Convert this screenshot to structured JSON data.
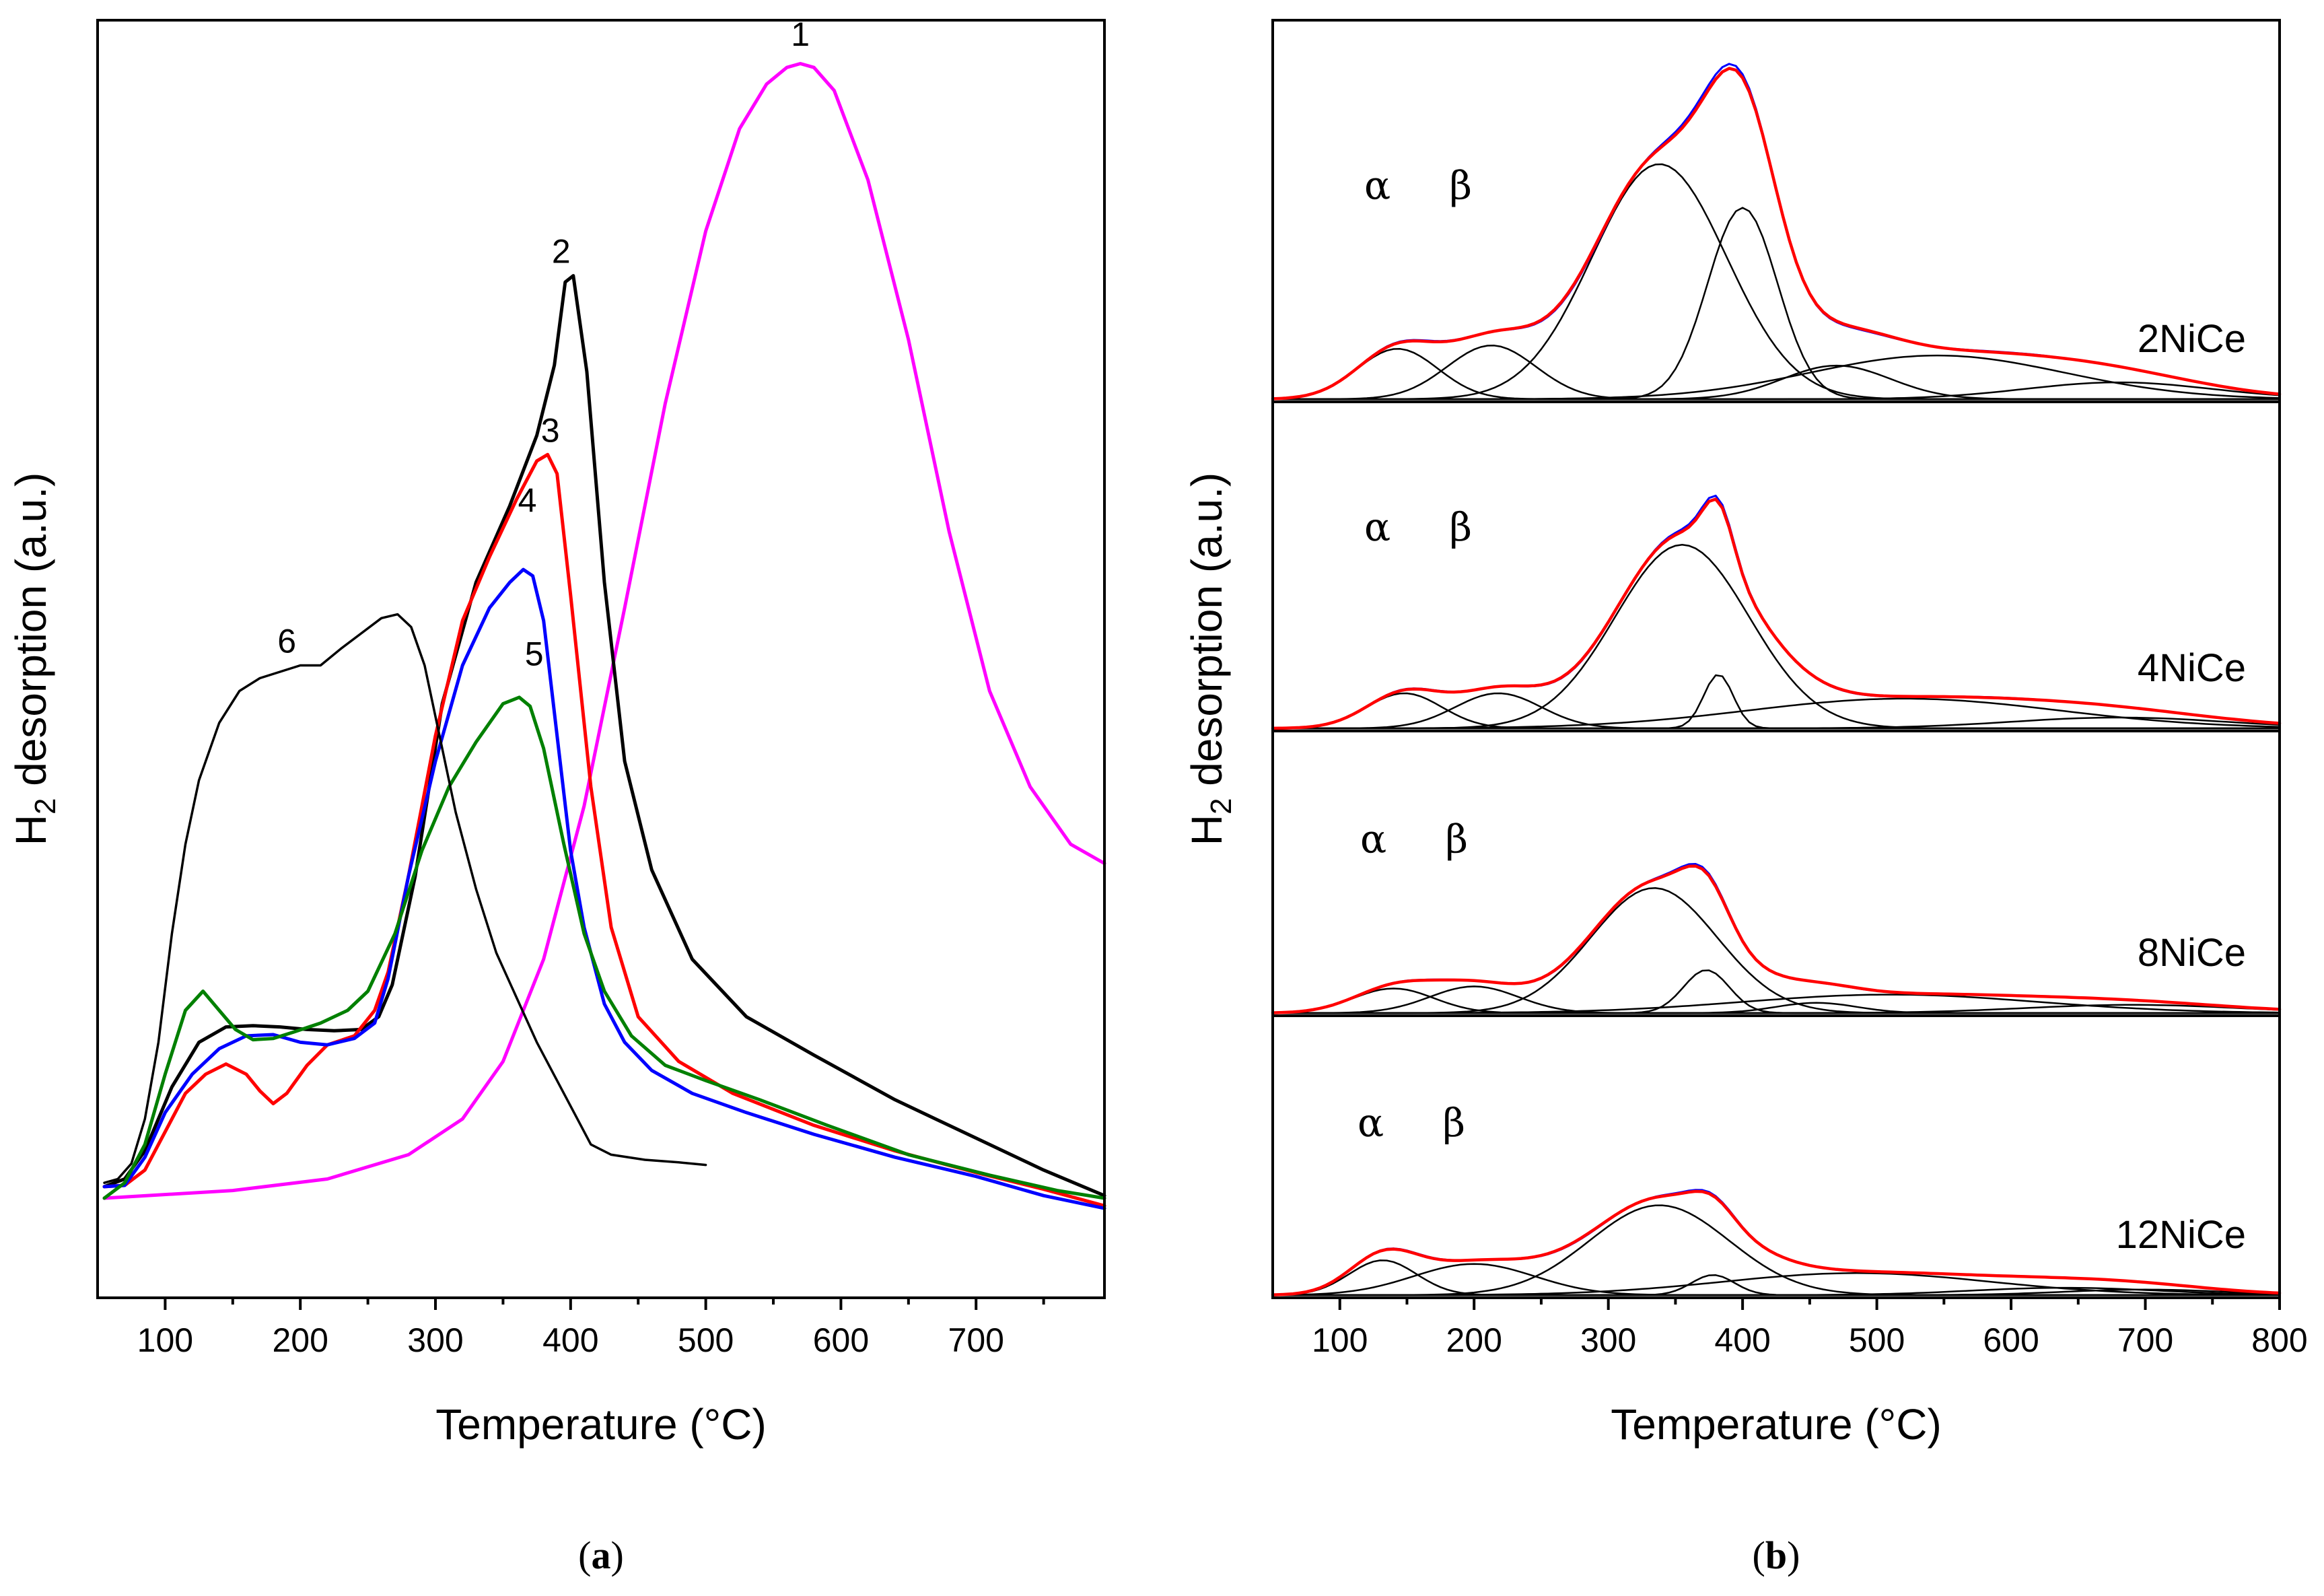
{
  "chart_data": [
    {
      "type": "line",
      "panel": "a",
      "caption_letter": "a",
      "xlabel": "Temperature (°C)",
      "ylabel_main": "H",
      "ylabel_sub": "2",
      "ylabel_rest": " desorption (a.u.)",
      "xlim": [
        50,
        795
      ],
      "ylim": [
        0,
        100
      ],
      "xticks": [
        100,
        200,
        300,
        400,
        500,
        600,
        700
      ],
      "series": [
        {
          "name": "1",
          "color": "#ff00ff",
          "label_x": 570,
          "label_y": 98,
          "x": [
            55,
            150,
            220,
            280,
            320,
            350,
            380,
            410,
            440,
            470,
            500,
            525,
            545,
            560,
            570,
            580,
            595,
            620,
            650,
            680,
            710,
            740,
            770,
            795
          ],
          "y": [
            7.8,
            8.4,
            9.3,
            11.2,
            14.0,
            18.5,
            26.5,
            38.5,
            54.0,
            70.0,
            83.5,
            91.5,
            95.0,
            96.3,
            96.6,
            96.3,
            94.5,
            87.5,
            75.0,
            60.0,
            47.5,
            40.0,
            35.5,
            34.0
          ]
        },
        {
          "name": "2",
          "color": "#000000",
          "label_x": 393,
          "label_y": 81,
          "x": [
            55,
            70,
            85,
            105,
            125,
            145,
            165,
            185,
            205,
            225,
            245,
            258,
            268,
            285,
            305,
            330,
            355,
            375,
            388,
            396,
            402,
            412,
            425,
            440,
            460,
            490,
            530,
            580,
            640,
            700,
            750,
            795
          ],
          "y": [
            8.7,
            9.3,
            11.5,
            16.5,
            20.0,
            21.2,
            21.3,
            21.2,
            21.0,
            20.9,
            21.0,
            22.0,
            24.5,
            33.0,
            46.5,
            56.0,
            62.0,
            67.5,
            73.0,
            79.5,
            80.0,
            72.5,
            56.0,
            42.0,
            33.5,
            26.5,
            22.0,
            19.0,
            15.5,
            12.5,
            10.0,
            8.0
          ]
        },
        {
          "name": "3",
          "color": "#ff0000",
          "label_x": 385,
          "label_y": 67,
          "x": [
            55,
            70,
            85,
            100,
            115,
            130,
            145,
            160,
            170,
            180,
            190,
            205,
            220,
            240,
            255,
            265,
            280,
            300,
            320,
            340,
            360,
            375,
            383,
            390,
            400,
            415,
            430,
            450,
            480,
            520,
            580,
            640,
            700,
            750,
            795
          ],
          "y": [
            8.7,
            8.8,
            10.0,
            13.0,
            16.0,
            17.5,
            18.3,
            17.5,
            16.2,
            15.2,
            16.0,
            18.2,
            19.8,
            20.5,
            22.5,
            25.5,
            33.0,
            44.0,
            53.0,
            58.0,
            62.5,
            65.5,
            66.0,
            64.5,
            55.0,
            40.0,
            29.0,
            22.0,
            18.5,
            16.0,
            13.5,
            11.5,
            9.8,
            8.5,
            7.2
          ]
        },
        {
          "name": "4",
          "color": "#0000ff",
          "label_x": 368,
          "label_y": 61.5,
          "x": [
            55,
            70,
            85,
            100,
            120,
            140,
            160,
            180,
            200,
            220,
            240,
            255,
            265,
            280,
            300,
            320,
            340,
            355,
            365,
            372,
            380,
            390,
            400,
            410,
            425,
            440,
            460,
            490,
            530,
            580,
            640,
            700,
            750,
            795
          ],
          "y": [
            8.7,
            8.8,
            11.0,
            14.5,
            17.5,
            19.5,
            20.5,
            20.6,
            20.0,
            19.8,
            20.3,
            21.5,
            25.0,
            33.0,
            42.0,
            49.5,
            54.0,
            56.0,
            57.0,
            56.5,
            53.0,
            44.0,
            35.0,
            29.0,
            23.0,
            20.0,
            17.8,
            16.0,
            14.5,
            12.8,
            11.0,
            9.5,
            8.0,
            7.0
          ]
        },
        {
          "name": "5",
          "color": "#008000",
          "label_x": 373,
          "label_y": 49.5,
          "x": [
            55,
            70,
            85,
            100,
            115,
            128,
            140,
            152,
            165,
            180,
            195,
            215,
            235,
            250,
            270,
            290,
            310,
            330,
            350,
            362,
            370,
            380,
            395,
            410,
            425,
            445,
            470,
            500,
            540,
            590,
            650,
            710,
            760,
            795
          ],
          "y": [
            7.8,
            9.0,
            12.0,
            17.5,
            22.5,
            24.0,
            22.5,
            21.0,
            20.2,
            20.3,
            20.8,
            21.5,
            22.5,
            24.0,
            28.5,
            35.0,
            40.0,
            43.5,
            46.5,
            47.0,
            46.3,
            43.0,
            35.5,
            28.5,
            24.0,
            20.5,
            18.2,
            17.0,
            15.5,
            13.5,
            11.2,
            9.6,
            8.4,
            7.8
          ]
        },
        {
          "name": "6",
          "color": "#000000",
          "label_x": 190,
          "label_y": 50.5,
          "x": [
            55,
            65,
            75,
            85,
            95,
            105,
            115,
            125,
            140,
            155,
            170,
            185,
            200,
            215,
            230,
            245,
            260,
            272,
            282,
            292,
            302,
            315,
            330,
            345,
            360,
            375,
            390,
            405,
            415,
            430,
            455,
            480,
            500
          ],
          "y": [
            9.0,
            9.3,
            10.5,
            14.0,
            20.0,
            28.5,
            35.5,
            40.5,
            45.0,
            47.5,
            48.5,
            49.0,
            49.5,
            49.5,
            50.8,
            52.0,
            53.2,
            53.5,
            52.5,
            49.5,
            44.5,
            38.0,
            32.0,
            27.0,
            23.5,
            20.0,
            17.0,
            14.0,
            12.0,
            11.2,
            10.8,
            10.6,
            10.4
          ]
        }
      ]
    },
    {
      "type": "line",
      "panel": "b",
      "caption_letter": "b",
      "xlabel": "Temperature (°C)",
      "ylabel_main": "H",
      "ylabel_sub": "2",
      "ylabel_rest": " desorption (a.u.)",
      "xlim": [
        50,
        800
      ],
      "xticks": [
        100,
        200,
        300,
        400,
        500,
        600,
        700,
        800
      ],
      "alpha_label": "α",
      "beta_label": "β",
      "samples": [
        {
          "name": "2NiCe",
          "scale": 0.88,
          "alpha_x": 128,
          "beta_x": 190,
          "peaks": [
            [
              143,
              0.15,
              30
            ],
            [
              213,
              0.16,
              33
            ],
            [
              338,
              0.7,
              50
            ],
            [
              400,
              0.57,
              26
            ],
            [
              470,
              0.1,
              40
            ],
            [
              545,
              0.13,
              95
            ],
            [
              680,
              0.05,
              70
            ]
          ]
        },
        {
          "name": "4NiCe",
          "scale": 0.82,
          "alpha_x": 128,
          "beta_x": 190,
          "peaks": [
            [
              148,
              0.13,
              28
            ],
            [
              218,
              0.13,
              32
            ],
            [
              355,
              0.68,
              50
            ],
            [
              382,
              0.2,
              11
            ],
            [
              520,
              0.11,
              115
            ],
            [
              680,
              0.04,
              80
            ]
          ]
        },
        {
          "name": "8NiCe",
          "scale": 0.72,
          "alpha_x": 125,
          "beta_x": 187,
          "peaks": [
            [
              140,
              0.12,
              30
            ],
            [
              200,
              0.13,
              33
            ],
            [
              334,
              0.61,
              47
            ],
            [
              373,
              0.21,
              17
            ],
            [
              455,
              0.05,
              30
            ],
            [
              510,
              0.09,
              110
            ],
            [
              690,
              0.04,
              80
            ]
          ]
        },
        {
          "name": "12NiCe",
          "scale": 0.65,
          "alpha_x": 123,
          "beta_x": 185,
          "peaks": [
            [
              132,
              0.19,
              25
            ],
            [
              200,
              0.17,
              45
            ],
            [
              338,
              0.49,
              52
            ],
            [
              378,
              0.11,
              16
            ],
            [
              485,
              0.12,
              100
            ],
            [
              640,
              0.04,
              70
            ],
            [
              700,
              0.03,
              60
            ]
          ]
        }
      ]
    }
  ]
}
